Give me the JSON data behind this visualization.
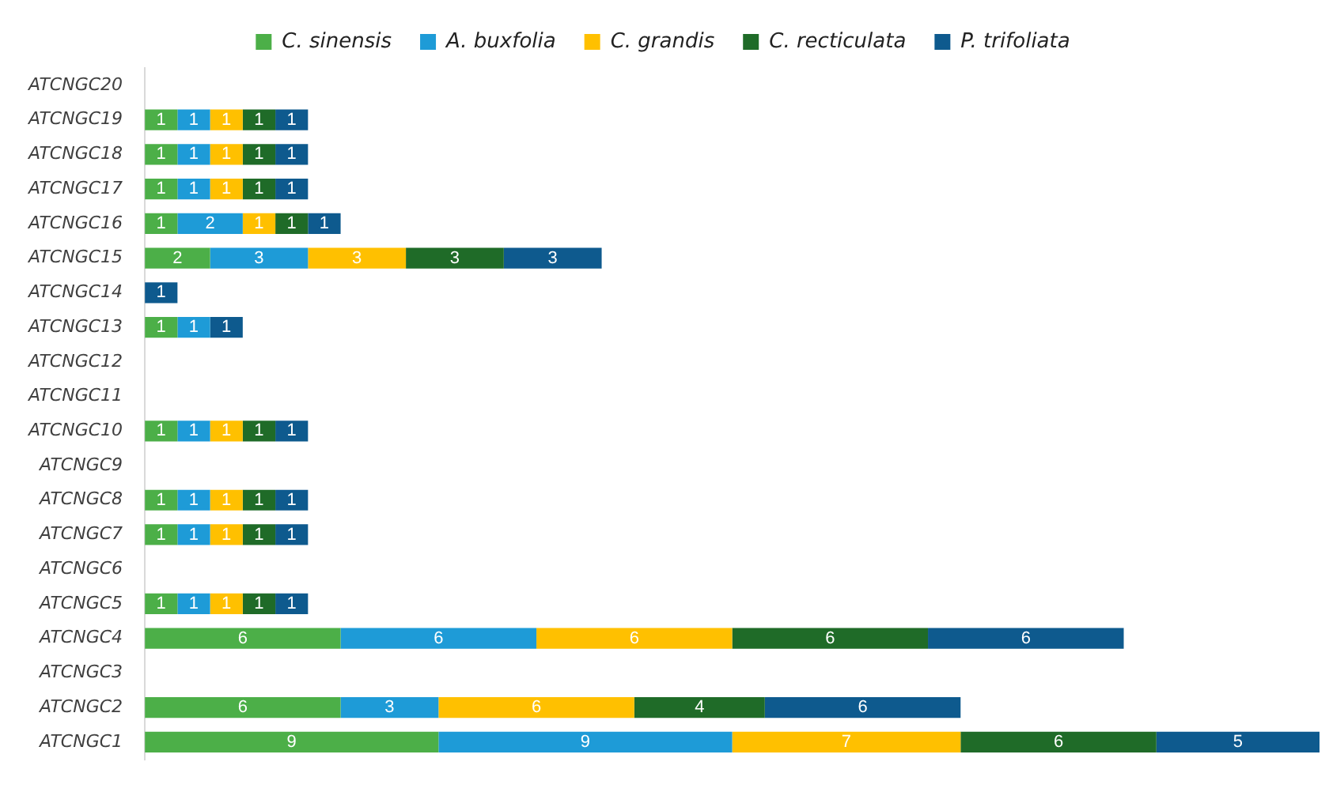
{
  "chart_data": {
    "type": "bar",
    "orientation": "horizontal",
    "stacked": true,
    "legend": "top",
    "tick_labels": "y",
    "data_labels": true,
    "categories": [
      "ATCNGC20",
      "ATCNGC19",
      "ATCNGC18",
      "ATCNGC17",
      "ATCNGC16",
      "ATCNGC15",
      "ATCNGC14",
      "ATCNGC13",
      "ATCNGC12",
      "ATCNGC11",
      "ATCNGC10",
      "ATCNGC9",
      "ATCNGC8",
      "ATCNGC7",
      "ATCNGC6",
      "ATCNGC5",
      "ATCNGC4",
      "ATCNGC3",
      "ATCNGC2",
      "ATCNGC1"
    ],
    "series": [
      {
        "name": "C. sinensis",
        "color": "#4caf48",
        "values": [
          null,
          1,
          1,
          1,
          1,
          2,
          null,
          1,
          null,
          null,
          1,
          null,
          1,
          1,
          null,
          1,
          6,
          null,
          6,
          9
        ]
      },
      {
        "name": "A. buxfolia",
        "color": "#1e9bd7",
        "values": [
          null,
          1,
          1,
          1,
          2,
          3,
          null,
          1,
          null,
          null,
          1,
          null,
          1,
          1,
          null,
          1,
          6,
          null,
          3,
          9
        ]
      },
      {
        "name": "C. grandis",
        "color": "#ffc000",
        "values": [
          null,
          1,
          1,
          1,
          1,
          3,
          null,
          null,
          null,
          null,
          1,
          null,
          1,
          1,
          null,
          1,
          6,
          null,
          6,
          7
        ]
      },
      {
        "name": "C. recticulata",
        "color": "#1f6b28",
        "values": [
          null,
          1,
          1,
          1,
          1,
          3,
          null,
          null,
          null,
          null,
          1,
          null,
          1,
          1,
          null,
          1,
          6,
          null,
          4,
          6
        ]
      },
      {
        "name": "P. trifoliata",
        "color": "#0e5a8e",
        "values": [
          null,
          1,
          1,
          1,
          1,
          3,
          1,
          1,
          null,
          null,
          1,
          null,
          1,
          1,
          null,
          1,
          6,
          null,
          6,
          5
        ]
      }
    ]
  }
}
